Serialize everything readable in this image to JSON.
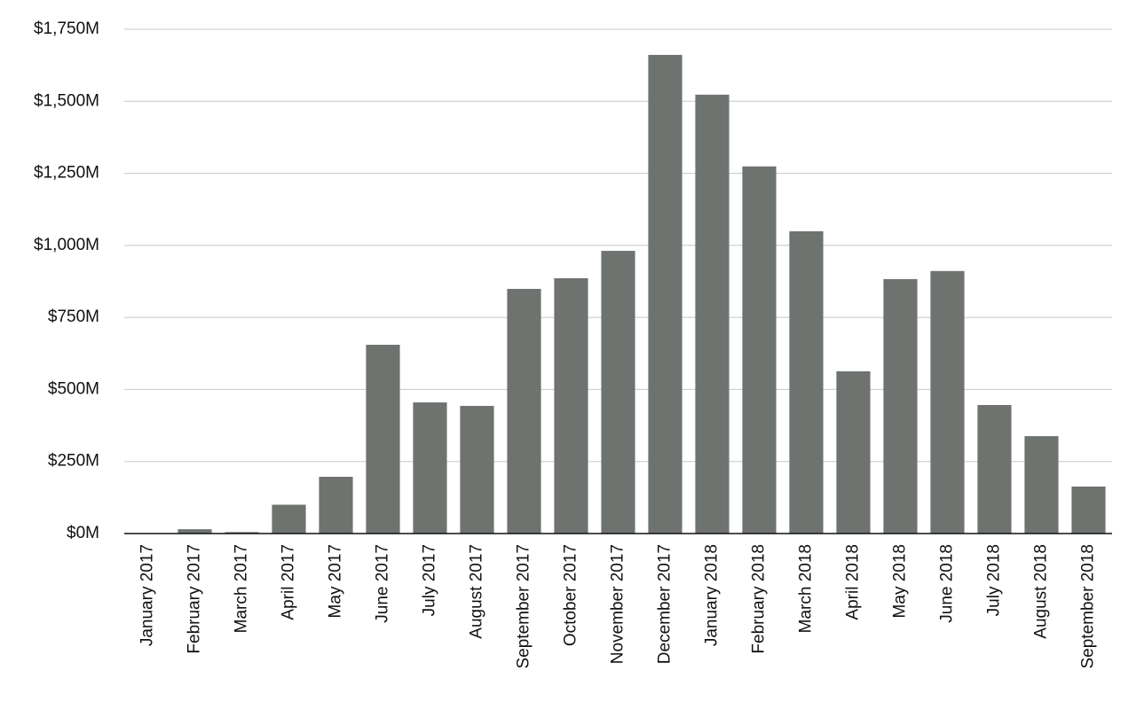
{
  "chart_data": {
    "type": "bar",
    "categories": [
      "January 2017",
      "February 2017",
      "March 2017",
      "April 2017",
      "May 2017",
      "June 2017",
      "July 2017",
      "August 2017",
      "September 2017",
      "October 2017",
      "November 2017",
      "December 2017",
      "January 2018",
      "February 2018",
      "March 2018",
      "April 2018",
      "May 2018",
      "June 2018",
      "July 2018",
      "August 2018",
      "September 2018"
    ],
    "values": [
      1,
      15,
      5,
      100,
      197,
      655,
      455,
      443,
      849,
      886,
      981,
      1661,
      1523,
      1274,
      1049,
      563,
      883,
      911,
      446,
      338,
      163
    ],
    "color": "#6e7370",
    "ylim": [
      0,
      1750
    ],
    "yticks": [
      {
        "value": 0,
        "label": "$0M"
      },
      {
        "value": 250,
        "label": "$250M"
      },
      {
        "value": 500,
        "label": "$500M"
      },
      {
        "value": 750,
        "label": "$750M"
      },
      {
        "value": 1000,
        "label": "$1,000M"
      },
      {
        "value": 1250,
        "label": "$1,250M"
      },
      {
        "value": 1500,
        "label": "$1,500M"
      },
      {
        "value": 1750,
        "label": "$1,750M"
      }
    ],
    "grid": true
  }
}
